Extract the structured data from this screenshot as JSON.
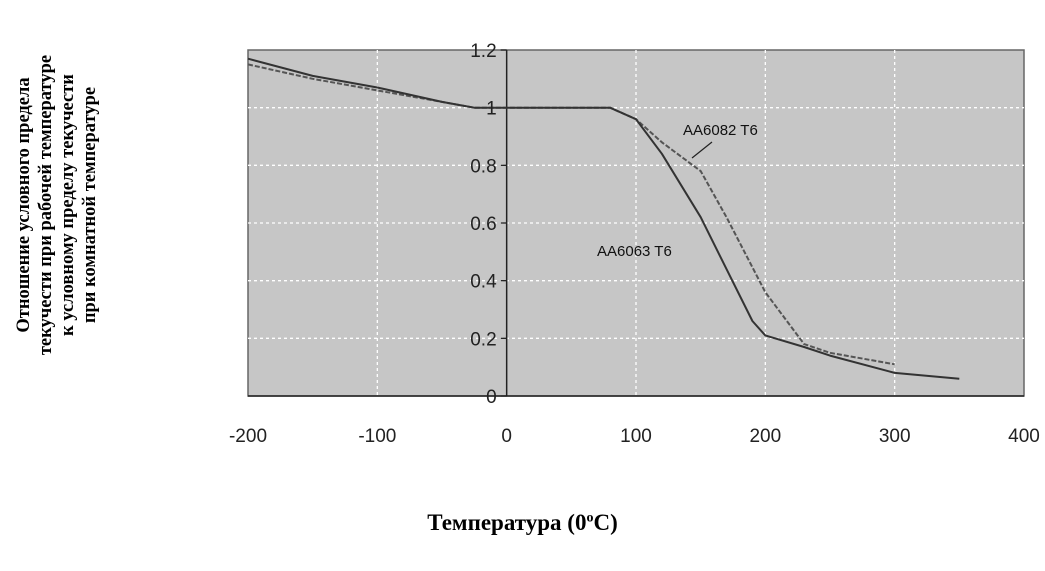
{
  "chart_data": {
    "type": "line",
    "ylabel_lines": [
      "Отношение условного предела",
      "текучести при рабочей температуре",
      "к условному пределу текучести",
      "при комнатной температуре"
    ],
    "xlabel_main": "Температура (0",
    "xlabel_sup": "o",
    "xlabel_end": "C)",
    "xlim": [
      -200,
      400
    ],
    "ylim": [
      0,
      1.2
    ],
    "x_ticks": [
      -200,
      -100,
      0,
      100,
      200,
      300,
      400
    ],
    "y_ticks": [
      0,
      0.2,
      0.4,
      0.6,
      0.8,
      1,
      1.2
    ],
    "x_tick_labels": [
      "-200",
      "-100",
      "0",
      "100",
      "200",
      "300",
      "400"
    ],
    "y_tick_labels": [
      "0",
      "0.2",
      "0.4",
      "0.6",
      "0.8",
      "1",
      "1.2"
    ],
    "grid": true,
    "series": [
      {
        "name": "AA6082 T6",
        "x": [
          -200,
          -150,
          -100,
          -50,
          -25,
          0,
          50,
          80,
          100,
          120,
          150,
          170,
          200,
          230,
          250,
          300
        ],
        "y": [
          1.15,
          1.1,
          1.06,
          1.02,
          1.0,
          1.0,
          1.0,
          1.0,
          0.96,
          0.88,
          0.78,
          0.62,
          0.36,
          0.18,
          0.15,
          0.11
        ]
      },
      {
        "name": "AA6063 T6",
        "x": [
          -200,
          -150,
          -100,
          -50,
          -25,
          0,
          50,
          80,
          100,
          120,
          150,
          170,
          190,
          200,
          230,
          250,
          300,
          350
        ],
        "y": [
          1.17,
          1.11,
          1.07,
          1.02,
          1.0,
          1.0,
          1.0,
          1.0,
          0.96,
          0.84,
          0.62,
          0.44,
          0.26,
          0.21,
          0.17,
          0.14,
          0.08,
          0.06
        ]
      }
    ]
  }
}
